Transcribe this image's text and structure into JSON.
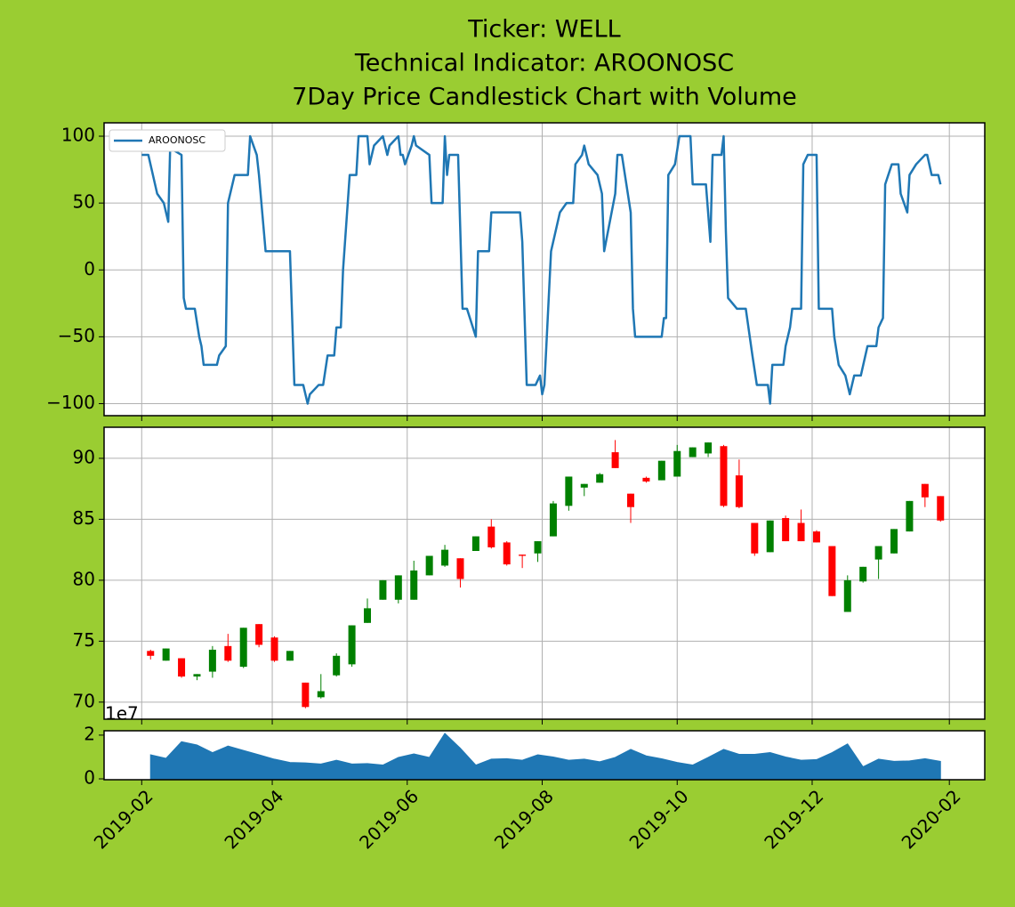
{
  "chart_data": [
    {
      "type": "line",
      "title": [
        "Ticker: WELL",
        "Technical Indicator: AROONOSC",
        "7Day Price Candlestick Chart with Volume"
      ],
      "x": [
        "2019-02-01",
        "2019-02-04",
        "2019-02-08",
        "2019-02-11",
        "2019-02-13",
        "2019-02-14",
        "2019-02-15",
        "2019-02-19",
        "2019-02-20",
        "2019-02-21",
        "2019-02-25",
        "2019-02-27",
        "2019-02-28",
        "2019-03-01",
        "2019-03-07",
        "2019-03-08",
        "2019-03-11",
        "2019-03-12",
        "2019-03-15",
        "2019-03-21",
        "2019-03-22",
        "2019-03-25",
        "2019-03-26",
        "2019-03-29",
        "2019-04-09",
        "2019-04-11",
        "2019-04-15",
        "2019-04-17",
        "2019-04-18",
        "2019-04-22",
        "2019-04-24",
        "2019-04-26",
        "2019-04-29",
        "2019-04-30",
        "2019-05-02",
        "2019-05-03",
        "2019-05-06",
        "2019-05-09",
        "2019-05-10",
        "2019-05-14",
        "2019-05-15",
        "2019-05-17",
        "2019-05-21",
        "2019-05-23",
        "2019-05-24",
        "2019-05-28",
        "2019-05-29",
        "2019-05-30",
        "2019-05-31",
        "2019-06-03",
        "2019-06-04",
        "2019-06-05",
        "2019-06-11",
        "2019-06-12",
        "2019-06-17",
        "2019-06-18",
        "2019-06-19",
        "2019-06-20",
        "2019-06-24",
        "2019-06-26",
        "2019-06-28",
        "2019-07-02",
        "2019-07-03",
        "2019-07-08",
        "2019-07-09",
        "2019-07-22",
        "2019-07-23",
        "2019-07-25",
        "2019-07-29",
        "2019-07-31",
        "2019-08-01",
        "2019-08-02",
        "2019-08-05",
        "2019-08-09",
        "2019-08-12",
        "2019-08-15",
        "2019-08-16",
        "2019-08-19",
        "2019-08-20",
        "2019-08-22",
        "2019-08-26",
        "2019-08-28",
        "2019-08-29",
        "2019-09-03",
        "2019-09-04",
        "2019-09-06",
        "2019-09-10",
        "2019-09-11",
        "2019-09-12",
        "2019-09-24",
        "2019-09-25",
        "2019-09-26",
        "2019-09-27",
        "2019-09-30",
        "2019-10-02",
        "2019-10-07",
        "2019-10-08",
        "2019-10-14",
        "2019-10-16",
        "2019-10-17",
        "2019-10-21",
        "2019-10-22",
        "2019-10-23",
        "2019-10-24",
        "2019-10-28",
        "2019-11-01",
        "2019-11-04",
        "2019-11-06",
        "2019-11-11",
        "2019-11-12",
        "2019-11-13",
        "2019-11-18",
        "2019-11-19",
        "2019-11-21",
        "2019-11-22",
        "2019-11-26",
        "2019-11-27",
        "2019-11-29",
        "2019-12-03",
        "2019-12-04",
        "2019-12-10",
        "2019-12-11",
        "2019-12-13",
        "2019-12-16",
        "2019-12-18",
        "2019-12-20",
        "2019-12-23",
        "2019-12-26",
        "2019-12-30",
        "2019-12-31",
        "2020-01-02",
        "2020-01-03",
        "2020-01-06",
        "2020-01-09",
        "2020-01-10",
        "2020-01-13",
        "2020-01-14",
        "2020-01-17",
        "2020-01-21",
        "2020-01-22",
        "2020-01-24",
        "2020-01-27",
        "2020-01-28"
      ],
      "series": [
        {
          "name": "AROONOSC",
          "color": "#1f77b4",
          "values": [
            86,
            86,
            57,
            50,
            36,
            100,
            90,
            86,
            -21,
            -29,
            -29,
            -50,
            -57,
            -71,
            -71,
            -64,
            -57,
            50,
            71,
            71,
            100,
            86,
            71,
            14,
            14,
            -86,
            -86,
            -100,
            -93,
            -86,
            -86,
            -64,
            -64,
            -43,
            -43,
            0,
            71,
            71,
            100,
            100,
            79,
            93,
            100,
            86,
            93,
            100,
            86,
            86,
            79,
            93,
            100,
            93,
            86,
            50,
            50,
            100,
            71,
            86,
            86,
            -29,
            -29,
            -50,
            14,
            14,
            43,
            43,
            21,
            -86,
            -86,
            -79,
            -93,
            -86,
            14,
            43,
            50,
            50,
            79,
            86,
            93,
            79,
            71,
            57,
            14,
            57,
            86,
            86,
            43,
            -29,
            -50,
            -50,
            -36,
            -36,
            71,
            79,
            100,
            100,
            64,
            64,
            21,
            86,
            86,
            100,
            29,
            -21,
            -29,
            -29,
            -64,
            -86,
            -86,
            -100,
            -71,
            -71,
            -57,
            -43,
            -29,
            -29,
            79,
            86,
            86,
            -29,
            -29,
            -50,
            -71,
            -79,
            -93,
            -79,
            -79,
            -57,
            -57,
            -43,
            -36,
            64,
            79,
            79,
            57,
            43,
            71,
            79,
            86,
            86,
            71,
            71,
            64
          ]
        }
      ],
      "xlim": [
        "2019-01-15",
        "2020-02-17"
      ],
      "ylim": [
        -109,
        110
      ],
      "yticks": [
        100,
        50,
        0,
        {
          "value": -50,
          "label": "−50"
        },
        {
          "value": -100,
          "label": "−100"
        }
      ],
      "grid": true,
      "legend": "upper left"
    },
    {
      "type": "candlestick",
      "x": [
        "2019-02-05",
        "2019-02-12",
        "2019-02-19",
        "2019-02-26",
        "2019-03-05",
        "2019-03-12",
        "2019-03-19",
        "2019-03-26",
        "2019-04-02",
        "2019-04-09",
        "2019-04-16",
        "2019-04-23",
        "2019-04-30",
        "2019-05-07",
        "2019-05-14",
        "2019-05-21",
        "2019-05-28",
        "2019-06-04",
        "2019-06-11",
        "2019-06-18",
        "2019-06-25",
        "2019-07-02",
        "2019-07-09",
        "2019-07-16",
        "2019-07-23",
        "2019-07-30",
        "2019-08-06",
        "2019-08-13",
        "2019-08-20",
        "2019-08-27",
        "2019-09-03",
        "2019-09-10",
        "2019-09-17",
        "2019-09-24",
        "2019-10-01",
        "2019-10-08",
        "2019-10-15",
        "2019-10-22",
        "2019-10-29",
        "2019-11-05",
        "2019-11-12",
        "2019-11-19",
        "2019-11-26",
        "2019-12-03",
        "2019-12-10",
        "2019-12-17",
        "2019-12-24",
        "2019-12-31",
        "2020-01-07",
        "2020-01-14",
        "2020-01-21",
        "2020-01-28"
      ],
      "open": [
        74.2,
        73.4,
        73.6,
        72.1,
        72.5,
        74.6,
        72.9,
        76.4,
        75.3,
        73.4,
        71.6,
        70.4,
        72.2,
        73.1,
        76.5,
        78.4,
        78.4,
        78.4,
        80.4,
        81.2,
        81.8,
        82.4,
        84.4,
        83.1,
        82.1,
        82.2,
        83.6,
        86.1,
        87.6,
        88.0,
        90.5,
        87.1,
        88.4,
        88.2,
        88.5,
        90.1,
        90.4,
        91.0,
        88.6,
        84.7,
        82.3,
        85.1,
        84.7,
        84.0,
        82.8,
        77.4,
        79.9,
        81.7,
        82.2,
        84.0,
        87.9,
        86.9
      ],
      "high": [
        74.3,
        74.4,
        73.6,
        72.3,
        74.6,
        75.6,
        76.1,
        76.4,
        75.4,
        74.2,
        71.6,
        72.3,
        74.0,
        76.3,
        78.5,
        80.0,
        80.4,
        81.6,
        82.0,
        82.9,
        81.8,
        83.6,
        85.0,
        83.2,
        82.1,
        83.2,
        86.5,
        88.5,
        87.9,
        88.8,
        91.5,
        87.1,
        88.5,
        89.8,
        91.1,
        90.9,
        91.3,
        91.1,
        89.9,
        84.7,
        84.9,
        85.3,
        85.8,
        84.1,
        82.8,
        80.4,
        81.1,
        82.8,
        84.2,
        86.5,
        87.9,
        86.9
      ],
      "low": [
        73.5,
        73.4,
        72.0,
        71.8,
        72.0,
        73.3,
        72.8,
        74.5,
        73.3,
        73.4,
        69.5,
        70.3,
        72.1,
        72.9,
        76.5,
        78.4,
        78.1,
        78.4,
        80.4,
        81.1,
        79.4,
        82.4,
        82.6,
        81.2,
        81.0,
        81.5,
        83.6,
        85.7,
        86.9,
        88.0,
        89.2,
        84.7,
        88.0,
        88.2,
        88.5,
        90.1,
        90.1,
        86.0,
        85.9,
        82.0,
        82.3,
        83.2,
        83.2,
        83.1,
        78.7,
        77.4,
        79.8,
        80.1,
        82.2,
        84.0,
        86.0,
        84.8
      ],
      "close": [
        73.8,
        74.4,
        72.1,
        72.3,
        74.3,
        73.4,
        76.1,
        74.7,
        73.4,
        74.2,
        69.6,
        70.9,
        73.8,
        76.3,
        77.7,
        80.0,
        80.4,
        80.8,
        82.0,
        82.5,
        80.1,
        83.6,
        82.7,
        81.3,
        82.0,
        83.2,
        86.3,
        88.5,
        87.9,
        88.7,
        89.2,
        86.0,
        88.1,
        89.8,
        90.6,
        90.9,
        91.3,
        86.1,
        86.0,
        82.2,
        84.9,
        83.2,
        83.2,
        83.1,
        78.7,
        80.0,
        81.1,
        82.8,
        84.2,
        86.5,
        86.8,
        84.9
      ],
      "up_color": "#008000",
      "down_color": "#ff0000",
      "xlim": [
        "2019-01-15",
        "2020-02-17"
      ],
      "ylim": [
        68.6,
        92.55
      ],
      "yticks": [
        70,
        75,
        80,
        85,
        90
      ],
      "grid": true
    },
    {
      "type": "area",
      "x": [
        "2019-02-05",
        "2019-02-12",
        "2019-02-19",
        "2019-02-26",
        "2019-03-05",
        "2019-03-12",
        "2019-03-19",
        "2019-03-26",
        "2019-04-02",
        "2019-04-09",
        "2019-04-16",
        "2019-04-23",
        "2019-04-30",
        "2019-05-07",
        "2019-05-14",
        "2019-05-21",
        "2019-05-28",
        "2019-06-04",
        "2019-06-11",
        "2019-06-18",
        "2019-06-25",
        "2019-07-02",
        "2019-07-09",
        "2019-07-16",
        "2019-07-23",
        "2019-07-30",
        "2019-08-06",
        "2019-08-13",
        "2019-08-20",
        "2019-08-27",
        "2019-09-03",
        "2019-09-10",
        "2019-09-17",
        "2019-09-24",
        "2019-10-01",
        "2019-10-08",
        "2019-10-15",
        "2019-10-22",
        "2019-10-29",
        "2019-11-05",
        "2019-11-12",
        "2019-11-19",
        "2019-11-26",
        "2019-12-03",
        "2019-12-10",
        "2019-12-17",
        "2019-12-24",
        "2019-12-31",
        "2020-01-07",
        "2020-01-14",
        "2020-01-21",
        "2020-01-28"
      ],
      "values": [
        1.1,
        0.94,
        1.7,
        1.55,
        1.2,
        1.5,
        1.3,
        1.1,
        0.9,
        0.75,
        0.73,
        0.68,
        0.85,
        0.68,
        0.7,
        0.63,
        0.98,
        1.14,
        0.98,
        2.08,
        1.4,
        0.63,
        0.9,
        0.92,
        0.85,
        1.1,
        1.0,
        0.85,
        0.9,
        0.78,
        0.98,
        1.35,
        1.05,
        0.92,
        0.75,
        0.63,
        0.98,
        1.35,
        1.12,
        1.12,
        1.2,
        1.0,
        0.85,
        0.88,
        1.2,
        1.6,
        0.55,
        0.9,
        0.8,
        0.82,
        0.92,
        0.8
      ],
      "color": "#1f77b4",
      "offset_label": "1e7",
      "xlim": [
        "2019-01-15",
        "2020-02-17"
      ],
      "xticks": [
        "2019-02",
        "2019-04",
        "2019-06",
        "2019-08",
        "2019-10",
        "2019-12",
        "2020-02"
      ],
      "ylim": [
        -0.04,
        2.2
      ],
      "yticks": [
        0,
        2
      ],
      "grid": false
    }
  ]
}
